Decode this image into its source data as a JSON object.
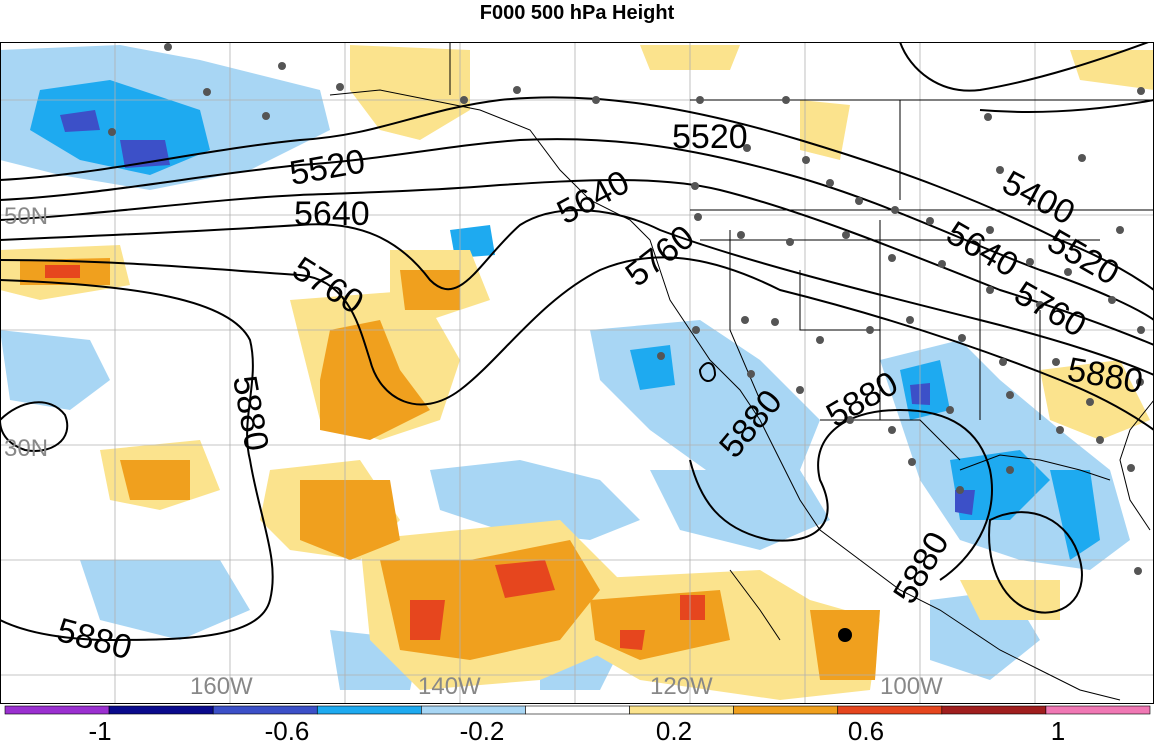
{
  "title": "F000 500 hPa Height",
  "longitude_labels": [
    "160W",
    "140W",
    "120W",
    "100W"
  ],
  "latitude_labels": [
    "50N",
    "30N"
  ],
  "contour_labels": [
    "5400",
    "5520",
    "5640",
    "5760",
    "5880"
  ],
  "colorbar": {
    "tick_labels": [
      "-1",
      "-0.6",
      "-0.2",
      "0.2",
      "0.6",
      "1"
    ],
    "colors": [
      "#9b30d0",
      "#0a0a8c",
      "#3c50c8",
      "#1eaaf0",
      "#a8d6f4",
      "#ffffff",
      "#fbe38d",
      "#f0a01e",
      "#e6461e",
      "#a01e1e",
      "#f078b4"
    ]
  },
  "marker_colors": {
    "station": "#555555",
    "highlight": "#000000"
  }
}
